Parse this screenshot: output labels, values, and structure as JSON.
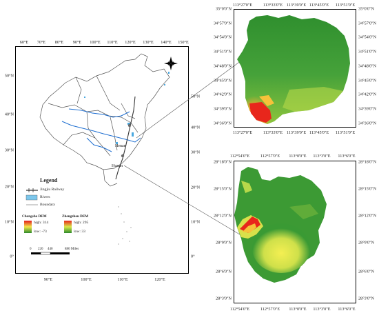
{
  "main_map": {
    "lon_top": [
      "60°E",
      "70°E",
      "80°E",
      "90°E",
      "100°E",
      "110°E",
      "120°E",
      "130°E",
      "140°E",
      "150°E"
    ],
    "lon_bottom": [
      "90°E",
      "100°E",
      "110°E",
      "120°E"
    ],
    "lat_left": [
      "50°N",
      "40°N",
      "30°N",
      "20°N",
      "10°N",
      "0°"
    ],
    "lat_right": [
      "50°N",
      "40°N",
      "30°N",
      "20°N",
      "10°N",
      "0°"
    ],
    "labels": {
      "henan": "Henan",
      "hunan": "Hunan"
    },
    "legend": {
      "title": "Legend",
      "railway": "Jingjiu Railway",
      "rivers": "Rivers",
      "boundary": "Boundary",
      "changsha_title": "Changsha DEM",
      "changsha_high": "high: 314",
      "changsha_low": "low: -73",
      "zhengzhou_title": "Zhengzhou DEM",
      "zhengzhou_high": "high: 295",
      "zhengzhou_low": "low: 33"
    },
    "scale": {
      "ticks": [
        "0",
        "220",
        "440",
        "880 Miles"
      ]
    },
    "north_arrow_icon": "compass-rose-icon"
  },
  "zhengzhou_map": {
    "lon_labels": [
      "113°27'0\"E",
      "113°33'0\"E",
      "113°39'0\"E",
      "113°45'0\"E",
      "113°51'0\"E"
    ],
    "lat_labels": [
      "35°0'0\"N",
      "34°57'0\"N",
      "34°54'0\"N",
      "34°51'0\"N",
      "34°48'0\"N",
      "34°45'0\"N",
      "34°42'0\"N",
      "34°39'0\"N",
      "34°36'0\"N"
    ]
  },
  "changsha_map": {
    "lon_labels": [
      "112°54'0\"E",
      "112°57'0\"E",
      "113°0'0\"E",
      "113°3'0\"E",
      "113°6'0\"E"
    ],
    "lat_labels": [
      "28°18'0\"N",
      "28°15'0\"N",
      "28°12'0\"N",
      "28°9'0\"N",
      "28°6'0\"N",
      "28°3'0\"N"
    ]
  },
  "colors": {
    "dem_high": "#e8261c",
    "dem_mid": "#f0e04a",
    "dem_low_green": "#2e8f2e",
    "river_blue": "#1f6fd1",
    "rail": "#333333"
  }
}
